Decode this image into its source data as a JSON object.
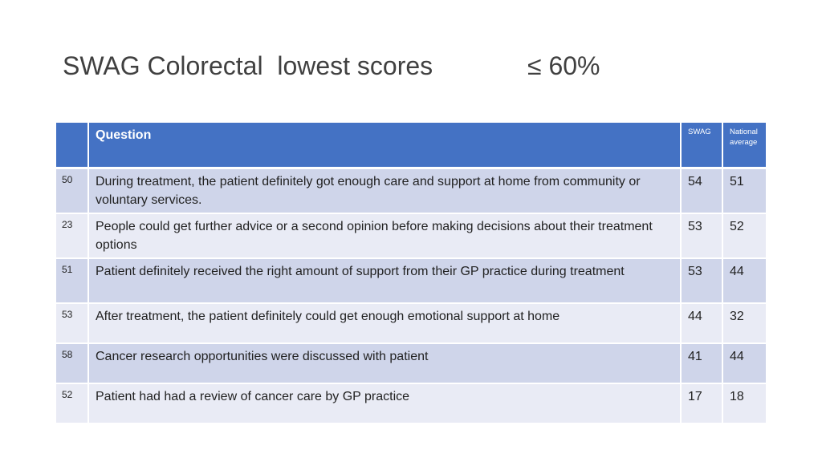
{
  "slide": {
    "title": "SWAG Colorectal  lowest scores",
    "threshold": "≤ 60%"
  },
  "table": {
    "headers": {
      "num": "",
      "question": "Question",
      "swag": "SWAG",
      "national": "National average"
    },
    "rows": [
      {
        "num": "50",
        "question": "During treatment, the patient definitely got enough care and support at home from community or voluntary services.",
        "swag": "54",
        "national": "51"
      },
      {
        "num": "23",
        "question": "People could get further advice or a second opinion before making decisions about their treatment options",
        "swag": "53",
        "national": "52"
      },
      {
        "num": "51",
        "question": "Patient definitely received the right amount of support from their GP practice during treatment",
        "swag": "53",
        "national": "44"
      },
      {
        "num": "53",
        "question": "After treatment, the patient definitely could get enough emotional support at home",
        "swag": "44",
        "national": "32"
      },
      {
        "num": "58",
        "question": "Cancer research opportunities were discussed with patient",
        "swag": "41",
        "national": "44"
      },
      {
        "num": "52",
        "question": "Patient had had a review of cancer care by GP practice",
        "swag": "17",
        "national": "18"
      }
    ]
  },
  "colors": {
    "header_bg": "#4472c4",
    "row_odd": "#cfd5ea",
    "row_even": "#e9ebf5",
    "title_text": "#404040"
  }
}
